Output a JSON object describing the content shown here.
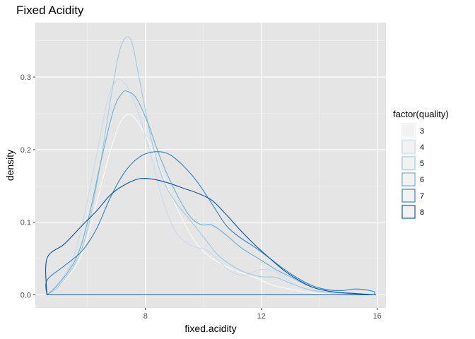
{
  "chart_data": {
    "type": "line",
    "subtype": "density",
    "title": "Fixed Acidity",
    "xlabel": "fixed.acidity",
    "ylabel": "density",
    "xlim": [
      4.2,
      16.3
    ],
    "ylim": [
      -0.018,
      0.375
    ],
    "x_ticks": [
      8,
      12,
      16
    ],
    "x_tick_labels": [
      "8",
      "12",
      "16"
    ],
    "y_ticks": [
      0.0,
      0.1,
      0.2,
      0.3
    ],
    "y_tick_labels": [
      "0.0",
      "0.1",
      "0.2",
      "0.3"
    ],
    "x_minor_gridlines": [
      6,
      10,
      14
    ],
    "y_minor_gridlines": [
      0.05,
      0.15,
      0.25,
      0.35
    ],
    "grid": true,
    "panel_background": "#e5e5e5",
    "legend_position": "right",
    "legend": {
      "title": "factor(quality)",
      "entries": [
        {
          "label": "3",
          "color": "#f7fbff"
        },
        {
          "label": "4",
          "color": "#c6dbef"
        },
        {
          "label": "5",
          "color": "#9ecae1"
        },
        {
          "label": "6",
          "color": "#6baed6"
        },
        {
          "label": "7",
          "color": "#3182bd"
        },
        {
          "label": "8",
          "color": "#08519c"
        }
      ]
    },
    "series": [
      {
        "name": "3",
        "color": "#f7fbff",
        "points": [
          [
            4.6,
            0.0
          ],
          [
            5.0,
            0.012
          ],
          [
            5.6,
            0.04
          ],
          [
            6.0,
            0.08
          ],
          [
            6.4,
            0.14
          ],
          [
            6.8,
            0.2
          ],
          [
            7.1,
            0.235
          ],
          [
            7.35,
            0.248
          ],
          [
            7.6,
            0.245
          ],
          [
            8.0,
            0.22
          ],
          [
            8.4,
            0.185
          ],
          [
            8.8,
            0.145
          ],
          [
            9.2,
            0.11
          ],
          [
            9.6,
            0.08
          ],
          [
            10.0,
            0.06
          ],
          [
            10.5,
            0.045
          ],
          [
            11.0,
            0.035
          ],
          [
            11.5,
            0.028
          ],
          [
            12.0,
            0.02
          ],
          [
            12.5,
            0.012
          ],
          [
            13.0,
            0.008
          ],
          [
            13.5,
            0.004
          ],
          [
            14.0,
            0.002
          ],
          [
            15.0,
            0.001
          ],
          [
            15.9,
            0.0
          ]
        ]
      },
      {
        "name": "4",
        "color": "#c6dbef",
        "points": [
          [
            4.6,
            0.0
          ],
          [
            4.9,
            0.012
          ],
          [
            5.5,
            0.05
          ],
          [
            6.0,
            0.13
          ],
          [
            6.4,
            0.21
          ],
          [
            6.7,
            0.27
          ],
          [
            6.95,
            0.293
          ],
          [
            7.1,
            0.297
          ],
          [
            7.4,
            0.285
          ],
          [
            7.8,
            0.245
          ],
          [
            8.2,
            0.19
          ],
          [
            8.6,
            0.13
          ],
          [
            9.0,
            0.09
          ],
          [
            9.4,
            0.072
          ],
          [
            9.8,
            0.065
          ],
          [
            10.1,
            0.062
          ],
          [
            10.5,
            0.048
          ],
          [
            10.9,
            0.033
          ],
          [
            11.4,
            0.027
          ],
          [
            12.0,
            0.035
          ],
          [
            12.5,
            0.032
          ],
          [
            13.0,
            0.018
          ],
          [
            13.5,
            0.008
          ],
          [
            14.2,
            0.003
          ],
          [
            15.0,
            0.001
          ],
          [
            15.9,
            0.0
          ]
        ]
      },
      {
        "name": "5",
        "color": "#9ecae1",
        "points": [
          [
            4.6,
            0.0
          ],
          [
            5.0,
            0.012
          ],
          [
            5.6,
            0.045
          ],
          [
            6.0,
            0.09
          ],
          [
            6.4,
            0.17
          ],
          [
            6.8,
            0.27
          ],
          [
            7.1,
            0.335
          ],
          [
            7.35,
            0.355
          ],
          [
            7.55,
            0.345
          ],
          [
            7.8,
            0.295
          ],
          [
            8.2,
            0.215
          ],
          [
            8.6,
            0.16
          ],
          [
            9.0,
            0.13
          ],
          [
            9.5,
            0.105
          ],
          [
            10.0,
            0.08
          ],
          [
            10.5,
            0.055
          ],
          [
            11.0,
            0.04
          ],
          [
            11.5,
            0.03
          ],
          [
            12.0,
            0.025
          ],
          [
            12.5,
            0.024
          ],
          [
            13.0,
            0.016
          ],
          [
            13.5,
            0.009
          ],
          [
            14.0,
            0.005
          ],
          [
            15.0,
            0.002
          ],
          [
            15.9,
            0.0
          ]
        ]
      },
      {
        "name": "6",
        "color": "#6baed6",
        "points": [
          [
            4.6,
            0.0
          ],
          [
            5.0,
            0.015
          ],
          [
            5.6,
            0.05
          ],
          [
            6.0,
            0.1
          ],
          [
            6.5,
            0.19
          ],
          [
            6.9,
            0.255
          ],
          [
            7.2,
            0.278
          ],
          [
            7.4,
            0.28
          ],
          [
            7.7,
            0.27
          ],
          [
            8.1,
            0.235
          ],
          [
            8.5,
            0.19
          ],
          [
            9.0,
            0.145
          ],
          [
            9.5,
            0.11
          ],
          [
            9.9,
            0.097
          ],
          [
            10.3,
            0.096
          ],
          [
            10.8,
            0.082
          ],
          [
            11.3,
            0.065
          ],
          [
            11.9,
            0.05
          ],
          [
            12.5,
            0.035
          ],
          [
            13.0,
            0.025
          ],
          [
            13.6,
            0.013
          ],
          [
            14.2,
            0.006
          ],
          [
            15.0,
            0.002
          ],
          [
            15.9,
            0.0
          ]
        ]
      },
      {
        "name": "7",
        "color": "#3182bd",
        "points": [
          [
            4.6,
            0.0
          ],
          [
            4.6,
            0.02
          ],
          [
            5.2,
            0.04
          ],
          [
            5.8,
            0.06
          ],
          [
            6.3,
            0.09
          ],
          [
            6.8,
            0.135
          ],
          [
            7.3,
            0.17
          ],
          [
            7.8,
            0.19
          ],
          [
            8.3,
            0.197
          ],
          [
            8.8,
            0.194
          ],
          [
            9.3,
            0.178
          ],
          [
            9.8,
            0.155
          ],
          [
            10.3,
            0.125
          ],
          [
            10.8,
            0.095
          ],
          [
            11.3,
            0.078
          ],
          [
            11.8,
            0.065
          ],
          [
            12.3,
            0.05
          ],
          [
            12.8,
            0.035
          ],
          [
            13.3,
            0.022
          ],
          [
            13.8,
            0.012
          ],
          [
            14.3,
            0.007
          ],
          [
            14.8,
            0.006
          ],
          [
            15.2,
            0.008
          ],
          [
            15.6,
            0.007
          ],
          [
            15.9,
            0.004
          ],
          [
            15.9,
            0.0
          ]
        ]
      },
      {
        "name": "8",
        "color": "#08519c",
        "points": [
          [
            4.6,
            0.0
          ],
          [
            4.6,
            0.05
          ],
          [
            5.2,
            0.07
          ],
          [
            5.8,
            0.095
          ],
          [
            6.3,
            0.115
          ],
          [
            6.8,
            0.138
          ],
          [
            7.3,
            0.152
          ],
          [
            7.8,
            0.16
          ],
          [
            8.3,
            0.159
          ],
          [
            8.8,
            0.154
          ],
          [
            9.3,
            0.147
          ],
          [
            9.8,
            0.14
          ],
          [
            10.3,
            0.13
          ],
          [
            10.8,
            0.11
          ],
          [
            11.3,
            0.088
          ],
          [
            11.8,
            0.068
          ],
          [
            12.3,
            0.05
          ],
          [
            12.8,
            0.033
          ],
          [
            13.3,
            0.02
          ],
          [
            13.8,
            0.01
          ],
          [
            14.5,
            0.004
          ],
          [
            15.2,
            0.002
          ],
          [
            15.9,
            0.0
          ],
          [
            15.9,
            0.0
          ]
        ]
      }
    ]
  }
}
